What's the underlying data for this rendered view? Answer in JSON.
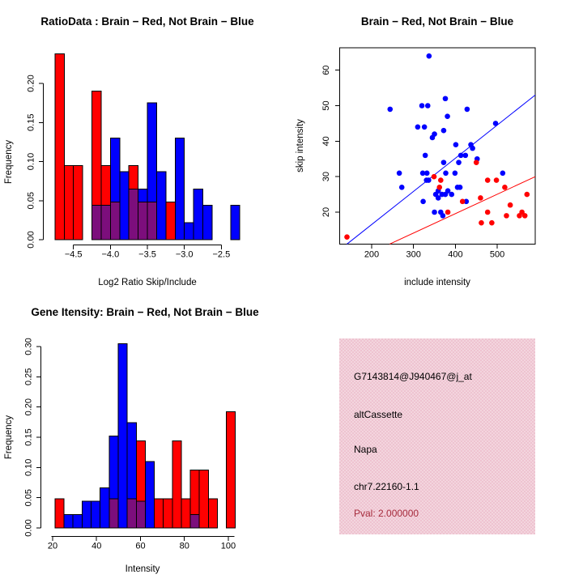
{
  "colors": {
    "red": "#ff0000",
    "blue": "#0000ff",
    "overlap_purple": "#7c0e7c",
    "axis_black": "#000000",
    "info_bg": "#eec3d0",
    "pval_red": "#a62b3c"
  },
  "chart_data": [
    {
      "type": "histogram",
      "title": "RatioData : Brain − Red, Not Brain − Blue",
      "xlabel": "Log2 Ratio Skip/Include",
      "ylabel": "Frequency",
      "legend": {
        "red": "Brain",
        "blue": "Not Brain"
      },
      "xticks": [
        -4.5,
        -4.0,
        -3.5,
        -3.0,
        -2.5
      ],
      "xtick_labels": [
        "-4.5",
        "-4.0",
        "-3.5",
        "-3.0",
        "-2.5"
      ],
      "yticks": [
        0,
        0.05,
        0.1,
        0.15,
        0.2
      ],
      "ytick_labels": [
        "0.00",
        "0.05",
        "0.10",
        "0.15",
        "0.20"
      ],
      "xlim": [
        -4.85,
        -2.25
      ],
      "ylim": [
        0,
        0.245
      ],
      "bin_width": 0.125,
      "red_bars": [
        {
          "x0": -4.75,
          "h": 0.238
        },
        {
          "x0": -4.625,
          "h": 0.095
        },
        {
          "x0": -4.5,
          "h": 0.095
        },
        {
          "x0": -4.25,
          "h": 0.19
        },
        {
          "x0": -4.125,
          "h": 0.095
        },
        {
          "x0": -4.0,
          "h": 0.048
        },
        {
          "x0": -3.75,
          "h": 0.095
        },
        {
          "x0": -3.625,
          "h": 0.048
        },
        {
          "x0": -3.5,
          "h": 0.048
        },
        {
          "x0": -3.25,
          "h": 0.048
        }
      ],
      "blue_bars": [
        {
          "x0": -4.25,
          "h": 0.044,
          "ov": 0.044
        },
        {
          "x0": -4.125,
          "h": 0.044,
          "ov": 0.044
        },
        {
          "x0": -4.0,
          "h": 0.13,
          "ov": 0.048
        },
        {
          "x0": -3.875,
          "h": 0.087
        },
        {
          "x0": -3.75,
          "h": 0.065,
          "ov": 0.065
        },
        {
          "x0": -3.625,
          "h": 0.065,
          "ov": 0.048
        },
        {
          "x0": -3.5,
          "h": 0.175,
          "ov": 0.048
        },
        {
          "x0": -3.375,
          "h": 0.087
        },
        {
          "x0": -3.125,
          "h": 0.13
        },
        {
          "x0": -3.0,
          "h": 0.022
        },
        {
          "x0": -2.875,
          "h": 0.065
        },
        {
          "x0": -2.75,
          "h": 0.044
        },
        {
          "x0": -2.375,
          "h": 0.044
        }
      ]
    },
    {
      "type": "scatter",
      "title": "Brain − Red, Not Brain − Blue",
      "xlabel": "include intensity",
      "ylabel": "skip intensity",
      "xticks": [
        200,
        300,
        400,
        500
      ],
      "xtick_labels": [
        "200",
        "300",
        "400",
        "500"
      ],
      "yticks": [
        20,
        30,
        40,
        50,
        60
      ],
      "ytick_labels": [
        "20",
        "30",
        "40",
        "50",
        "60"
      ],
      "xlim": [
        123,
        591
      ],
      "ylim": [
        10.9,
        66.3
      ],
      "blue_points": [
        [
          337,
          64
        ],
        [
          244,
          49
        ],
        [
          320,
          50
        ],
        [
          334,
          50
        ],
        [
          376,
          52
        ],
        [
          381,
          47
        ],
        [
          428,
          49
        ],
        [
          310,
          44
        ],
        [
          326,
          44
        ],
        [
          350,
          42
        ],
        [
          372,
          43
        ],
        [
          345,
          41
        ],
        [
          496,
          45
        ],
        [
          401,
          39
        ],
        [
          437,
          39
        ],
        [
          441,
          38
        ],
        [
          328,
          36
        ],
        [
          413,
          36
        ],
        [
          424,
          36
        ],
        [
          452,
          35
        ],
        [
          372,
          34
        ],
        [
          408,
          34
        ],
        [
          266,
          31
        ],
        [
          322,
          31
        ],
        [
          332,
          31
        ],
        [
          377,
          31
        ],
        [
          399,
          31
        ],
        [
          513,
          31
        ],
        [
          272,
          27
        ],
        [
          331,
          29
        ],
        [
          336,
          29
        ],
        [
          353,
          25
        ],
        [
          359,
          26
        ],
        [
          368,
          25
        ],
        [
          376,
          25
        ],
        [
          382,
          26
        ],
        [
          391,
          25
        ],
        [
          359,
          24
        ],
        [
          405,
          27
        ],
        [
          411,
          27
        ],
        [
          323,
          23
        ],
        [
          426,
          23
        ],
        [
          350,
          20
        ],
        [
          365,
          20
        ],
        [
          370,
          19
        ]
      ],
      "red_points": [
        [
          141,
          13
        ],
        [
          349,
          30
        ],
        [
          365,
          29
        ],
        [
          362,
          27
        ],
        [
          450,
          34
        ],
        [
          477,
          29
        ],
        [
          498,
          29
        ],
        [
          518,
          27
        ],
        [
          571,
          25
        ],
        [
          460,
          24
        ],
        [
          417,
          23
        ],
        [
          531,
          22
        ],
        [
          382,
          20
        ],
        [
          477,
          20
        ],
        [
          522,
          19
        ],
        [
          553,
          19
        ],
        [
          559,
          20
        ],
        [
          566,
          19
        ],
        [
          462,
          17
        ],
        [
          487,
          17
        ]
      ],
      "blue_line": {
        "x1": 141,
        "y1": 11,
        "x2": 591,
        "y2": 53
      },
      "red_line": {
        "x1": 243,
        "y1": 11,
        "x2": 591,
        "y2": 30
      }
    },
    {
      "type": "histogram",
      "title": "Gene Itensity: Brain − Red, Not Brain − Blue",
      "xlabel": "Intensity",
      "ylabel": "Frequency",
      "legend": {
        "red": "Brain",
        "blue": "Not Brain"
      },
      "xticks": [
        20,
        40,
        60,
        80,
        100
      ],
      "xtick_labels": [
        "20",
        "40",
        "60",
        "80",
        "100"
      ],
      "yticks": [
        0,
        0.05,
        0.1,
        0.15,
        0.2,
        0.25,
        0.3
      ],
      "ytick_labels": [
        "0.00",
        "0.05",
        "0.10",
        "0.15",
        "0.20",
        "0.25",
        "0.30"
      ],
      "xlim": [
        19,
        105
      ],
      "ylim": [
        0,
        0.31
      ],
      "red_bars": [
        {
          "x0": 21.1,
          "x1": 25.2,
          "h": 0.048
        },
        {
          "x0": 45.8,
          "x1": 49.9,
          "h": 0.048
        },
        {
          "x0": 54.0,
          "x1": 58.1,
          "h": 0.048
        },
        {
          "x0": 58.1,
          "x1": 62.2,
          "h": 0.144
        },
        {
          "x0": 66.3,
          "x1": 70.4,
          "h": 0.048
        },
        {
          "x0": 70.4,
          "x1": 74.5,
          "h": 0.048
        },
        {
          "x0": 74.5,
          "x1": 78.6,
          "h": 0.144
        },
        {
          "x0": 78.6,
          "x1": 82.7,
          "h": 0.048
        },
        {
          "x0": 82.7,
          "x1": 86.8,
          "h": 0.096
        },
        {
          "x0": 86.8,
          "x1": 90.9,
          "h": 0.096
        },
        {
          "x0": 90.9,
          "x1": 95.0,
          "h": 0.048
        },
        {
          "x0": 99.1,
          "x1": 103.2,
          "h": 0.192
        }
      ],
      "blue_bars": [
        {
          "x0": 25.2,
          "x1": 29.3,
          "h": 0.022
        },
        {
          "x0": 29.3,
          "x1": 33.4,
          "h": 0.022
        },
        {
          "x0": 33.4,
          "x1": 37.5,
          "h": 0.044
        },
        {
          "x0": 37.5,
          "x1": 41.6,
          "h": 0.044
        },
        {
          "x0": 41.6,
          "x1": 45.8,
          "h": 0.066
        },
        {
          "x0": 45.8,
          "x1": 49.9,
          "h": 0.152,
          "ov": 0.048
        },
        {
          "x0": 49.9,
          "x1": 54.0,
          "h": 0.305
        },
        {
          "x0": 54.0,
          "x1": 58.1,
          "h": 0.174,
          "ov": 0.048
        },
        {
          "x0": 58.1,
          "x1": 62.2,
          "h": 0.044,
          "ov": 0.044
        },
        {
          "x0": 62.2,
          "x1": 66.3,
          "h": 0.11
        },
        {
          "x0": 82.7,
          "x1": 86.8,
          "h": 0.022,
          "ov": 0.022
        }
      ]
    },
    {
      "type": "text-panel",
      "lines": [
        "G7143814@J940467@j_at",
        "altCassette",
        "Napa",
        "chr7.22160-1.1"
      ],
      "pval": "Pval: 2.000000"
    }
  ]
}
